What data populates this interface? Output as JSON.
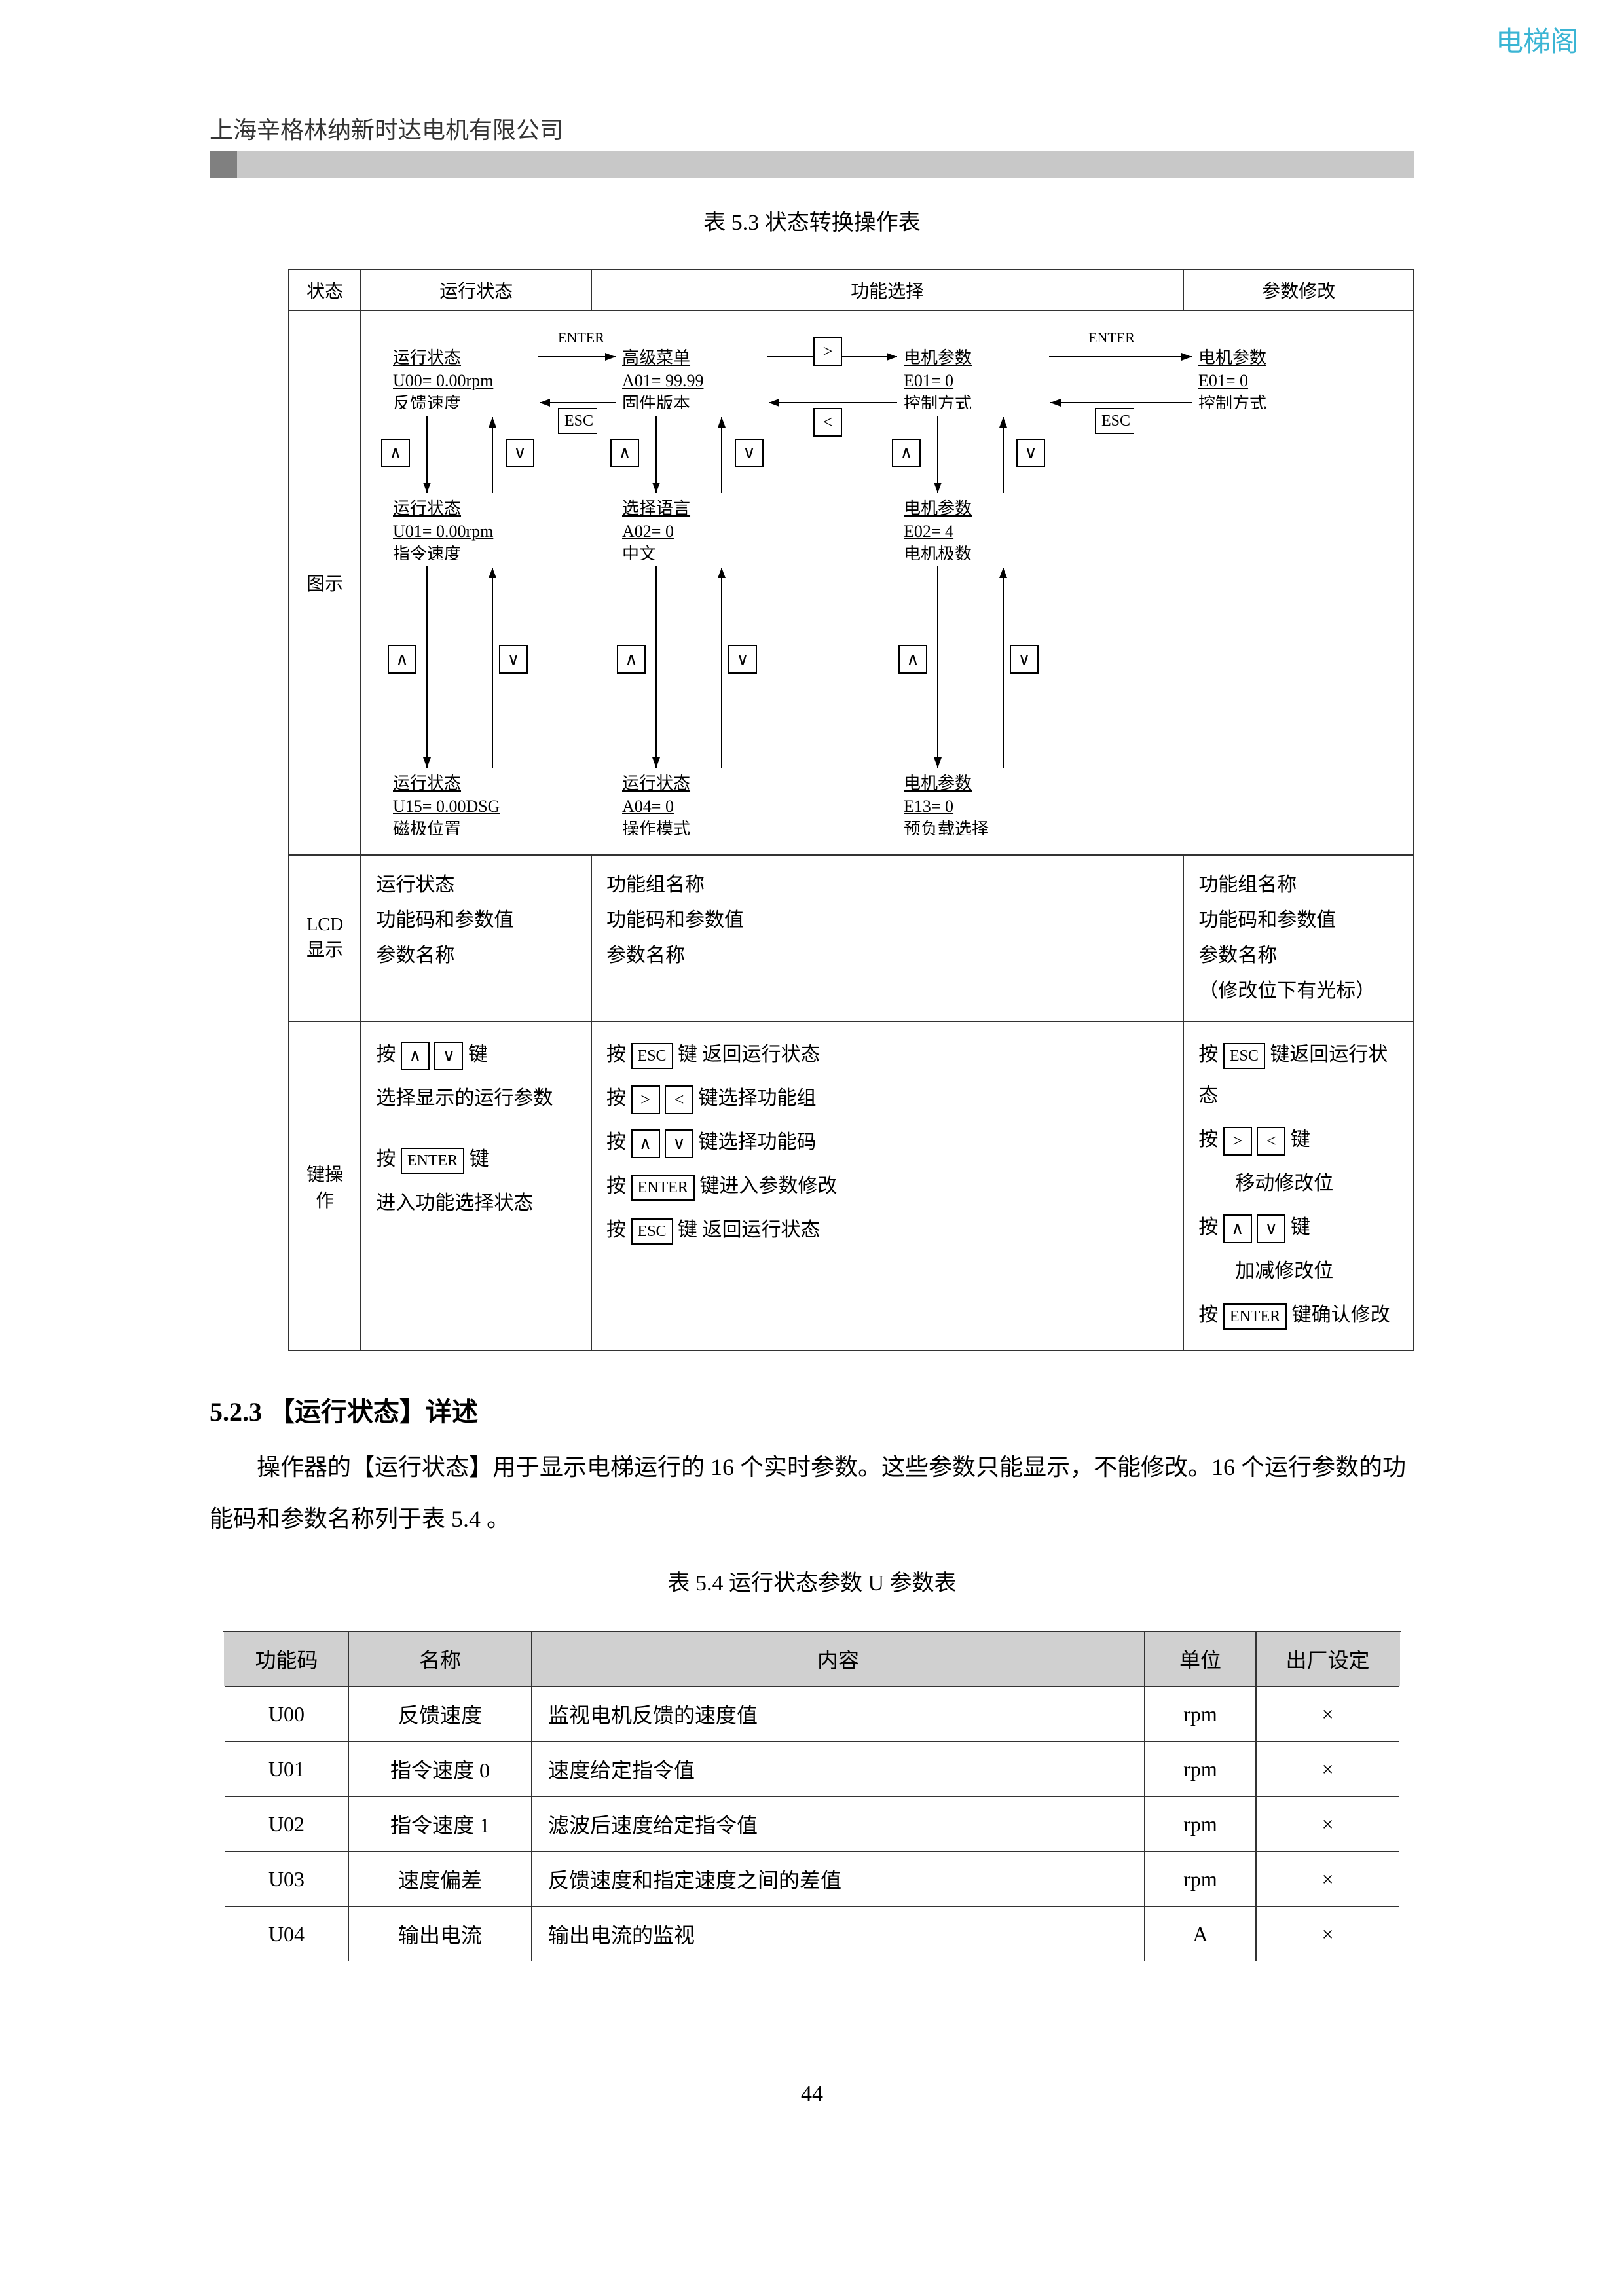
{
  "watermark": "电梯阁",
  "company": "上海辛格林纳新时达电机有限公司",
  "caption53": "表 5.3 状态转换操作表",
  "diag_headers": {
    "c1": "状态",
    "c2": "运行状态",
    "c3": "功能选择",
    "c4": "参数修改"
  },
  "row_labels": {
    "diagram": "图示",
    "lcd": "LCD显示",
    "keys": "键操作"
  },
  "labels": {
    "enter": "ENTER",
    "esc": "ESC",
    "right": ">",
    "left": "<"
  },
  "nodes": {
    "a1_t": "运行状态",
    "a1_l1": "U00=  0.00rpm",
    "a1_l2": "反馈速度",
    "a2_t": "运行状态",
    "a2_l1": "U01=  0.00rpm",
    "a2_l2": "指令速度",
    "a3_t": "运行状态",
    "a3_l1": "U15=  0.00DSG",
    "a3_l2": "磁极位置",
    "b1_t": "高级菜单",
    "b1_l1": "A01=   99.99",
    "b1_l2": "固件版本",
    "b2_t": "选择语言",
    "b2_l1": "A02=   0",
    "b2_l2": "中文",
    "b3_t": "运行状态",
    "b3_l1": "A04=   0",
    "b3_l2": "操作模式",
    "c1_t": "电机参数",
    "c1_l1": "E01=      0",
    "c1_l2": "控制方式",
    "c2_t": "电机参数",
    "c2_l1": "E02=    4",
    "c2_l2": "电机极数",
    "c3_t": "电机参数",
    "c3_l1": "E13=   0",
    "c3_l2": "预负载选择",
    "d1_t": "电机参数",
    "d1_l1": "E01=     0",
    "d1_l2": "控制方式"
  },
  "lcd": {
    "col2_1": "运行状态",
    "col2_2": "功能码和参数值",
    "col2_3": "参数名称",
    "col3_1": "功能组名称",
    "col3_2": "功能码和参数值",
    "col3_3": "参数名称",
    "col4_1": "功能组名称",
    "col4_2": "功能码和参数值",
    "col4_3": "参数名称",
    "col4_4": "（修改位下有光标）"
  },
  "keys": {
    "col2_a": "按",
    "col2_b": "键",
    "col2_line1b": "选择显示的运行参数",
    "col2_line2a": "按",
    "col2_line2b": "键",
    "col2_line3": "进入功能选择状态",
    "col3_r1": "键 返回运行状态",
    "col3_r2": "键选择功能组",
    "col3_r3": "键选择功能码",
    "col3_r4": "键进入参数修改",
    "col3_r5": "键 返回运行状态",
    "col4_r1": "键返回运行状态",
    "col4_r2": "键",
    "col4_r2b": "移动修改位",
    "col4_r3": "键",
    "col4_r3b": "加减修改位",
    "col4_r4": "键确认修改",
    "press": "按"
  },
  "section_heading": "5.2.3 【运行状态】详述",
  "body1": "操作器的【运行状态】用于显示电梯运行的 16 个实时参数。这些参数只能显示，不能修改。16 个运行参数的功能码和参数名称列于表 5.4 。",
  "caption54": "表 5.4 运行状态参数 U 参数表",
  "param_head": {
    "c1": "功能码",
    "c2": "名称",
    "c3": "内容",
    "c4": "单位",
    "c5": "出厂设定"
  },
  "param_rows": [
    {
      "code": "U00",
      "name": "反馈速度",
      "desc": "监视电机反馈的速度值",
      "unit": "rpm",
      "fac": "×"
    },
    {
      "code": "U01",
      "name": "指令速度 0",
      "desc": "速度给定指令值",
      "unit": "rpm",
      "fac": "×"
    },
    {
      "code": "U02",
      "name": "指令速度 1",
      "desc": "滤波后速度给定指令值",
      "unit": "rpm",
      "fac": "×"
    },
    {
      "code": "U03",
      "name": "速度偏差",
      "desc": "反馈速度和指定速度之间的差值",
      "unit": "rpm",
      "fac": "×"
    },
    {
      "code": "U04",
      "name": "输出电流",
      "desc": "输出电流的监视",
      "unit": "A",
      "fac": "×"
    }
  ],
  "page_num": "44"
}
